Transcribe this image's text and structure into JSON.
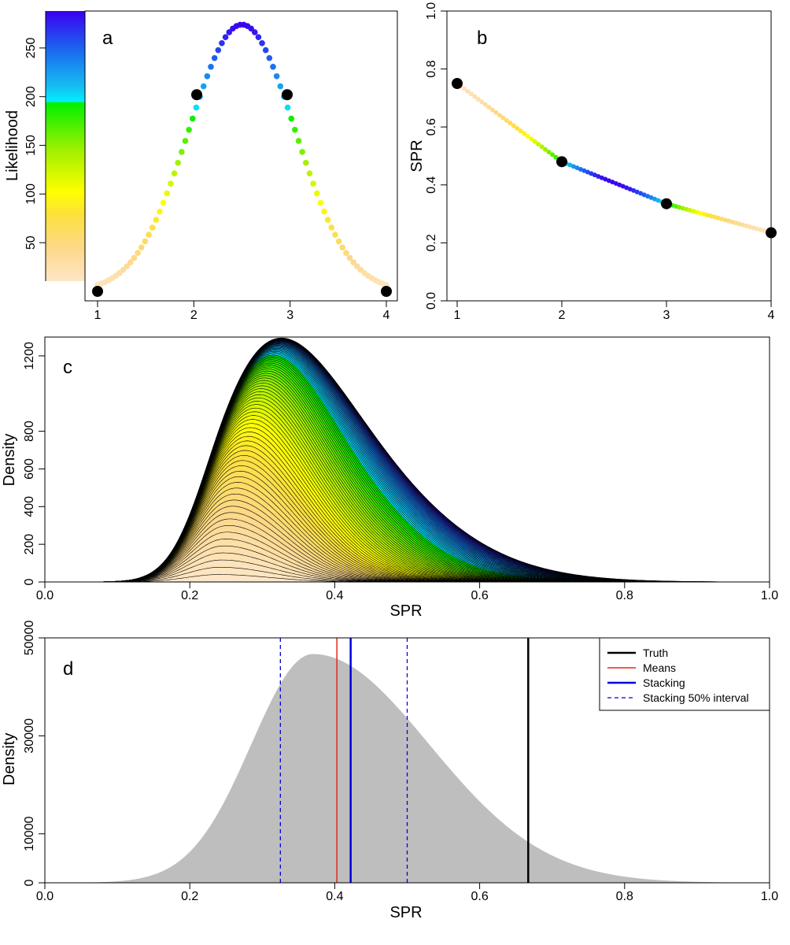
{
  "chart_data": [
    {
      "panel": "a",
      "type": "scatter",
      "label": "a",
      "ylabel": "Likelihood",
      "xlim": [
        1,
        4
      ],
      "ylim": [
        0,
        275
      ],
      "x_ticks": [
        1,
        2,
        3,
        4
      ],
      "y_ticks": [
        50,
        100,
        150,
        200,
        250
      ],
      "curve": {
        "shape": "gaussian",
        "x_from": 1,
        "x_to": 4,
        "points": 80,
        "peak_x": 2.5,
        "peak_y": 274,
        "sd": 0.55
      },
      "highlight_points": [
        {
          "x": 1.0,
          "y": 0
        },
        {
          "x": 2.03,
          "y": 202
        },
        {
          "x": 2.97,
          "y": 202
        },
        {
          "x": 4.0,
          "y": 0
        }
      ],
      "colorbar": {
        "min": 0,
        "max": 275,
        "ticks": [
          50,
          100,
          150,
          200,
          250
        ]
      }
    },
    {
      "panel": "b",
      "type": "line",
      "label": "b",
      "ylabel": "SPR",
      "xlim": [
        1,
        4
      ],
      "ylim": [
        0,
        1
      ],
      "x_ticks": [
        1,
        2,
        3,
        4
      ],
      "y_ticks": [
        0.0,
        0.2,
        0.4,
        0.6,
        0.8,
        1.0
      ],
      "y_tick_labels": [
        "0.0",
        "0.2",
        "0.4",
        "0.6",
        "0.8",
        "1.0"
      ],
      "highlight_points": [
        {
          "x": 1.0,
          "y": 0.75
        },
        {
          "x": 2.0,
          "y": 0.48
        },
        {
          "x": 3.0,
          "y": 0.335
        },
        {
          "x": 4.0,
          "y": 0.235
        }
      ]
    },
    {
      "panel": "c",
      "type": "area",
      "label": "c",
      "xlabel": "SPR",
      "ylabel": "Density",
      "xlim": [
        0,
        1
      ],
      "ylim": [
        0,
        1300
      ],
      "x_ticks": [
        0.0,
        0.2,
        0.4,
        0.6,
        0.8,
        1.0
      ],
      "x_tick_labels": [
        "0.0",
        "0.2",
        "0.4",
        "0.6",
        "0.8",
        "1.0"
      ],
      "y_ticks": [
        0,
        200,
        400,
        600,
        800,
        1200
      ],
      "n_layers": 80,
      "base_component": {
        "mean": 0.24,
        "sd": 0.052,
        "peak": 130
      },
      "total_peak": {
        "x": 0.39,
        "y": 1295
      }
    },
    {
      "panel": "d",
      "type": "area",
      "label": "d",
      "xlabel": "SPR",
      "ylabel": "Density",
      "xlim": [
        0,
        1
      ],
      "ylim": [
        0,
        50000
      ],
      "x_ticks": [
        0.0,
        0.2,
        0.4,
        0.6,
        0.8,
        1.0
      ],
      "x_tick_labels": [
        "0.0",
        "0.2",
        "0.4",
        "0.6",
        "0.8",
        "1.0"
      ],
      "y_ticks": [
        0,
        10000,
        30000,
        50000
      ],
      "y_tick_labels": [
        "0",
        "10000",
        "30000",
        "50000"
      ],
      "density": {
        "peak_x": 0.37,
        "peak_y": 46700
      },
      "lines": [
        {
          "name": "Truth",
          "x": 0.667,
          "color": "#000000",
          "style": "solid",
          "width": 2.5
        },
        {
          "name": "Means",
          "x": 0.403,
          "color": "#e8251f",
          "style": "solid",
          "width": 1.5
        },
        {
          "name": "Stacking",
          "x": 0.422,
          "color": "#0000dd",
          "style": "solid",
          "width": 2.5
        },
        {
          "name": "Stacking 50% interval",
          "x": 0.325,
          "x2": 0.5,
          "color": "#0000dd",
          "style": "dashed",
          "width": 1.3
        }
      ],
      "legend_position": "top-right",
      "legend": [
        "Truth",
        "Means",
        "Stacking",
        "Stacking 50% interval"
      ]
    }
  ]
}
